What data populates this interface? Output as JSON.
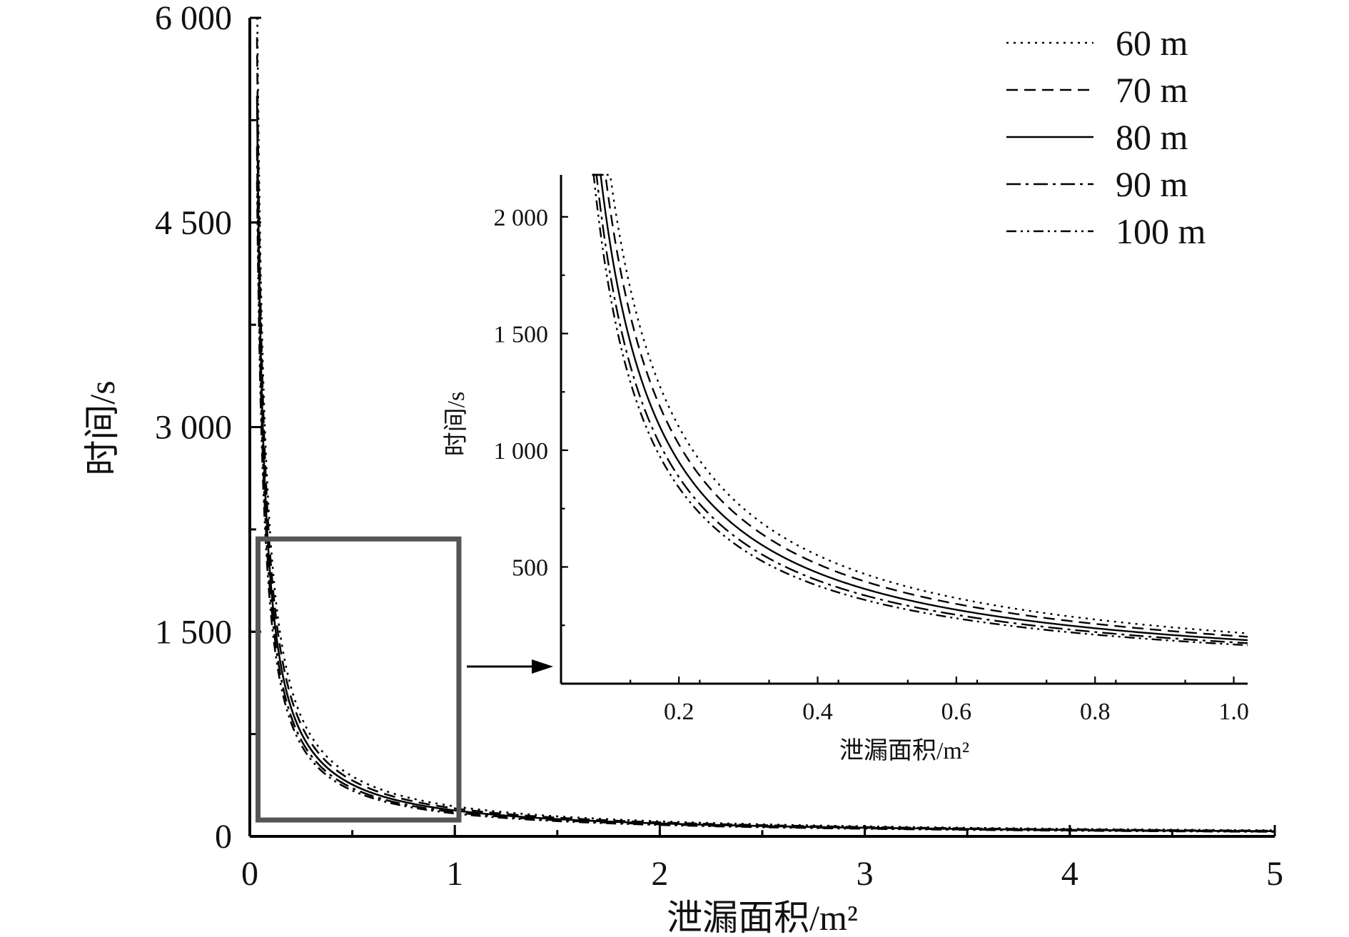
{
  "chart_data": [
    {
      "id": "main",
      "type": "line",
      "xlabel": "泄漏面积/m²",
      "ylabel": "时间/s",
      "xlim": [
        0,
        5
      ],
      "ylim": [
        0,
        6000
      ],
      "xticks": [
        "0",
        "1",
        "2",
        "3",
        "4",
        "5"
      ],
      "yticks": [
        "0",
        "1 500",
        "3 000",
        "4 500",
        "6 000"
      ],
      "grid": false,
      "legend_position": "top-right",
      "zoom_box": {
        "x": [
          0.04,
          1.02
        ],
        "y": [
          120,
          2180
        ]
      },
      "series": [
        {
          "name": "60 m",
          "style": "dotted",
          "k": 220.0
        },
        {
          "name": "70 m",
          "style": "dashed",
          "k": 205.0
        },
        {
          "name": "80 m",
          "style": "solid",
          "k": 190.0
        },
        {
          "name": "90 m",
          "style": "dashdot",
          "k": 177.0
        },
        {
          "name": "100 m",
          "style": "dashdotdot",
          "k": 168.0
        }
      ],
      "x_range": [
        0.035,
        5
      ]
    },
    {
      "id": "inset",
      "type": "line",
      "xlabel": "泄漏面积/m²",
      "ylabel": "时间/s",
      "xlim": [
        0.03,
        1.02
      ],
      "ylim": [
        0,
        2180
      ],
      "xticks": [
        "0.2",
        "0.4",
        "0.6",
        "0.8",
        "1.0"
      ],
      "yticks": [
        "500",
        "1 000",
        "1 500",
        "2 000"
      ],
      "grid": false,
      "series": [
        {
          "name": "60 m",
          "style": "dotted",
          "k": 220.0
        },
        {
          "name": "70 m",
          "style": "dashed",
          "k": 205.0
        },
        {
          "name": "80 m",
          "style": "solid",
          "k": 190.0
        },
        {
          "name": "90 m",
          "style": "dashdot",
          "k": 177.0
        },
        {
          "name": "100 m",
          "style": "dashdotdot",
          "k": 168.0
        }
      ],
      "x_range": [
        0.075,
        1.02
      ]
    }
  ]
}
